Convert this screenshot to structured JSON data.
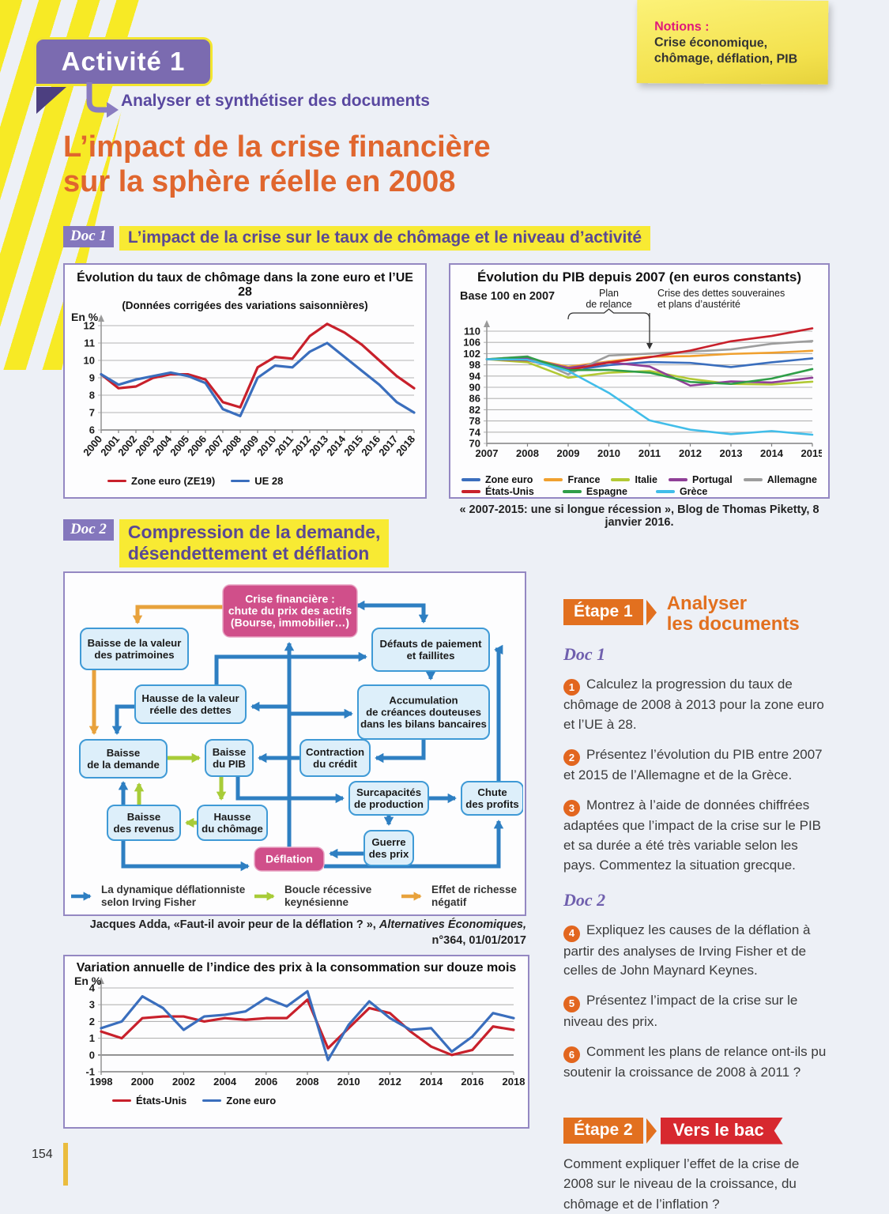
{
  "page": {
    "number": "154"
  },
  "header": {
    "activity_badge": "Activité 1",
    "subtitle": "Analyser et synthétiser des documents",
    "title_line1": "L’impact de la crise financière",
    "title_line2": "sur la sphère réelle en 2008",
    "sticky_note": {
      "label": "Notions :",
      "text": "Crise économique, chômage, déflation, PIB"
    }
  },
  "doc1": {
    "badge": "Doc 1",
    "title": "L’impact de la crise sur le taux de chômage et le niveau d’activité"
  },
  "doc2": {
    "badge": "Doc 2",
    "title_line1": "Compression de la demande,",
    "title_line2": "désendettement et déflation",
    "source_prefix": "Jacques Adda, «Faut-il avoir peur de la déflation ? », ",
    "source_italic": "Alternatives Économiques,",
    "source_line2": "n°364, 01/01/2017"
  },
  "chart_data": [
    {
      "type": "line",
      "title": "Évolution du taux de chômage dans la zone euro et l’UE 28",
      "subtitle": "(Données corrigées des variations saisonnières)",
      "unit_label": "En %",
      "x": [
        2000,
        2001,
        2002,
        2003,
        2004,
        2005,
        2006,
        2007,
        2008,
        2009,
        2010,
        2011,
        2012,
        2013,
        2014,
        2015,
        2016,
        2017,
        2018
      ],
      "ylim": [
        6,
        12
      ],
      "yticks": [
        6,
        7,
        8,
        9,
        10,
        11,
        12
      ],
      "grid": true,
      "legend_position": "bottom",
      "series": [
        {
          "name": "Zone euro (ZE19)",
          "color": "#c8202b",
          "values": [
            9.2,
            8.4,
            8.5,
            9.0,
            9.2,
            9.2,
            8.9,
            7.6,
            7.3,
            9.6,
            10.2,
            10.1,
            11.4,
            12.1,
            11.6,
            10.9,
            10.0,
            9.1,
            8.4
          ]
        },
        {
          "name": "UE 28",
          "color": "#3a6ebd",
          "values": [
            9.2,
            8.6,
            8.9,
            9.1,
            9.3,
            9.1,
            8.7,
            7.2,
            6.8,
            9.0,
            9.7,
            9.6,
            10.5,
            11.0,
            10.2,
            9.4,
            8.6,
            7.6,
            7.0
          ]
        }
      ]
    },
    {
      "type": "line",
      "title": "Évolution du PIB depuis 2007 (en euros constants)",
      "base_label": "Base 100 en 2007",
      "x": [
        2007,
        2008,
        2009,
        2010,
        2011,
        2012,
        2013,
        2014,
        2015
      ],
      "ylim": [
        70,
        110
      ],
      "yticks": [
        70,
        74,
        78,
        82,
        86,
        90,
        94,
        98,
        102,
        106,
        110
      ],
      "grid": true,
      "legend_position": "bottom",
      "series": [
        {
          "name": "Zone euro",
          "color": "#3a6ebd",
          "values": [
            100,
            100.4,
            95.9,
            97.9,
            99.0,
            98.7,
            97.2,
            98.9,
            100.3
          ]
        },
        {
          "name": "France",
          "color": "#f0a02f",
          "values": [
            100,
            100.3,
            97.3,
            99.2,
            100.9,
            101.1,
            101.9,
            102.3,
            103.0
          ]
        },
        {
          "name": "Italie",
          "color": "#b2c934",
          "values": [
            100,
            98.9,
            93.4,
            95.2,
            95.8,
            93.0,
            91.2,
            91.0,
            92.0
          ]
        },
        {
          "name": "Portugal",
          "color": "#8f3f97",
          "values": [
            100,
            100.2,
            96.9,
            98.9,
            97.4,
            90.6,
            92.1,
            91.7,
            93.4
          ]
        },
        {
          "name": "Allemagne",
          "color": "#9d9d9d",
          "values": [
            100,
            101.0,
            94.6,
            101.3,
            102.0,
            102.7,
            103.5,
            105.5,
            106.5
          ]
        },
        {
          "name": "États-Unis",
          "color": "#c8202b",
          "values": [
            100,
            99.6,
            96.2,
            98.8,
            100.7,
            103.1,
            106.4,
            108.3,
            111.0
          ]
        },
        {
          "name": "Espagne",
          "color": "#2f9e48",
          "values": [
            100,
            100.9,
            96.1,
            96.2,
            95.2,
            91.9,
            91.2,
            93.1,
            96.5
          ]
        },
        {
          "name": "Grèce",
          "color": "#41bde9",
          "values": [
            100,
            99.8,
            95.8,
            88.0,
            78.2,
            74.9,
            73.3,
            74.4,
            73.1
          ]
        }
      ],
      "annotations": {
        "plan_line1": "Plan",
        "plan_line2": "de relance",
        "plan_from": 2009,
        "plan_to": 2011,
        "crise_line1": "Crise des dettes souveraines",
        "crise_line2": "et plans d’austérité",
        "crise_arrow_x": 2011
      },
      "source": "« 2007-2015: une si longue récession », Blog de Thomas Piketty, 8 janvier 2016."
    },
    {
      "type": "line",
      "title": "Variation annuelle de l’indice des prix à la consommation sur douze mois",
      "unit_label": "En %",
      "x": [
        1998,
        1999,
        2000,
        2001,
        2002,
        2003,
        2004,
        2005,
        2006,
        2007,
        2008,
        2009,
        2010,
        2011,
        2012,
        2013,
        2014,
        2015,
        2016,
        2017,
        2018
      ],
      "x_label_step": 2,
      "ylim": [
        -1,
        4
      ],
      "yticks": [
        -1,
        0,
        1,
        2,
        3,
        4
      ],
      "grid": true,
      "legend_position": "bottom",
      "series": [
        {
          "name": "États-Unis",
          "color": "#c8202b",
          "values": [
            1.4,
            1.0,
            2.2,
            2.3,
            2.3,
            2.0,
            2.2,
            2.1,
            2.2,
            2.2,
            3.3,
            0.4,
            1.6,
            2.8,
            2.5,
            1.4,
            0.5,
            0.0,
            0.3,
            1.7,
            1.5
          ]
        },
        {
          "name": "Zone euro",
          "color": "#3a6ebd",
          "values": [
            1.6,
            2.0,
            3.5,
            2.8,
            1.5,
            2.3,
            2.4,
            2.6,
            3.4,
            2.9,
            3.8,
            -0.3,
            1.8,
            3.2,
            2.2,
            1.5,
            1.6,
            0.2,
            1.1,
            2.5,
            2.2
          ]
        }
      ]
    }
  ],
  "diagram": {
    "colors": {
      "blue": "#2e7fc2",
      "green": "#a8cc38",
      "orange": "#e8a23c",
      "box_fill": "#ddeffa",
      "box_border": "#3f9ad6",
      "pink": "#d04f8a"
    },
    "nodes": [
      {
        "id": "crise",
        "kind": "pink",
        "label": [
          "Crise financière :",
          "chute du prix des actifs",
          "(Bourse, immobilier…)"
        ]
      },
      {
        "id": "patrimoines",
        "kind": "blue",
        "label": [
          "Baisse de la valeur",
          "des patrimoines"
        ]
      },
      {
        "id": "defauts",
        "kind": "blue",
        "label": [
          "Défauts de paiement",
          "et faillites"
        ]
      },
      {
        "id": "hausse_dettes",
        "kind": "blue",
        "label": [
          "Hausse de la valeur",
          "réelle des dettes"
        ]
      },
      {
        "id": "accumulation",
        "kind": "blue",
        "label": [
          "Accumulation",
          "de créances douteuses",
          "dans les bilans bancaires"
        ]
      },
      {
        "id": "baisse_demande",
        "kind": "blue",
        "label": [
          "Baisse",
          "de la demande"
        ]
      },
      {
        "id": "baisse_pib",
        "kind": "blue",
        "label": [
          "Baisse",
          "du PIB"
        ]
      },
      {
        "id": "contraction",
        "kind": "blue",
        "label": [
          "Contraction",
          "du crédit"
        ]
      },
      {
        "id": "surcapacites",
        "kind": "blue",
        "label": [
          "Surcapacités",
          "de production"
        ]
      },
      {
        "id": "chute_profits",
        "kind": "blue",
        "label": [
          "Chute",
          "des profits"
        ]
      },
      {
        "id": "baisse_revenus",
        "kind": "blue",
        "label": [
          "Baisse",
          "des revenus"
        ]
      },
      {
        "id": "hausse_chomage",
        "kind": "blue",
        "label": [
          "Hausse",
          "du chômage"
        ]
      },
      {
        "id": "guerre_prix",
        "kind": "blue",
        "label": [
          "Guerre",
          "des prix"
        ]
      },
      {
        "id": "deflation",
        "kind": "pink",
        "label": [
          "Déflation"
        ]
      }
    ],
    "legend": [
      {
        "color": "#2e7fc2",
        "label": [
          "La dynamique déflationniste",
          "selon Irving Fisher"
        ]
      },
      {
        "color": "#a8cc38",
        "label": [
          "Boucle récessive",
          "keynésienne"
        ]
      },
      {
        "color": "#e8a23c",
        "label": [
          "Effet de richesse",
          "négatif"
        ]
      }
    ]
  },
  "right_column": {
    "etape1_badge": "Étape 1",
    "etape1_title_line1": "Analyser",
    "etape1_title_line2": "les documents",
    "doc1_label": "Doc 1",
    "doc2_label": "Doc 2",
    "questions_doc1": [
      {
        "num": "1",
        "text": "Calculez la progression du taux de chômage de 2008 à 2013 pour la zone euro et l’UE à 28."
      },
      {
        "num": "2",
        "text": "Présentez l’évolution du PIB entre 2007 et 2015 de l’Allemagne et de la Grèce."
      },
      {
        "num": "3",
        "text": "Montrez à l’aide de données chiffrées adaptées que l’impact de la crise sur le PIB et sa durée a été très variable selon les pays. Commentez la situation grecque."
      }
    ],
    "questions_doc2": [
      {
        "num": "4",
        "text": "Expliquez les causes de la déflation à partir des analyses de Irving Fisher et de celles de John Maynard Keynes."
      },
      {
        "num": "5",
        "text": "Présentez l’impact de la crise sur le niveau des prix."
      },
      {
        "num": "6",
        "text": "Comment les plans de relance ont-ils pu soutenir la croissance de 2008 à 2011 ?"
      }
    ],
    "etape2_badge": "Étape 2",
    "etape2_ribbon": "Vers le bac",
    "etape2_text": "Comment expliquer l’effet de la crise de 2008 sur le niveau de la croissance, du chômage et de l’inflation ?"
  }
}
